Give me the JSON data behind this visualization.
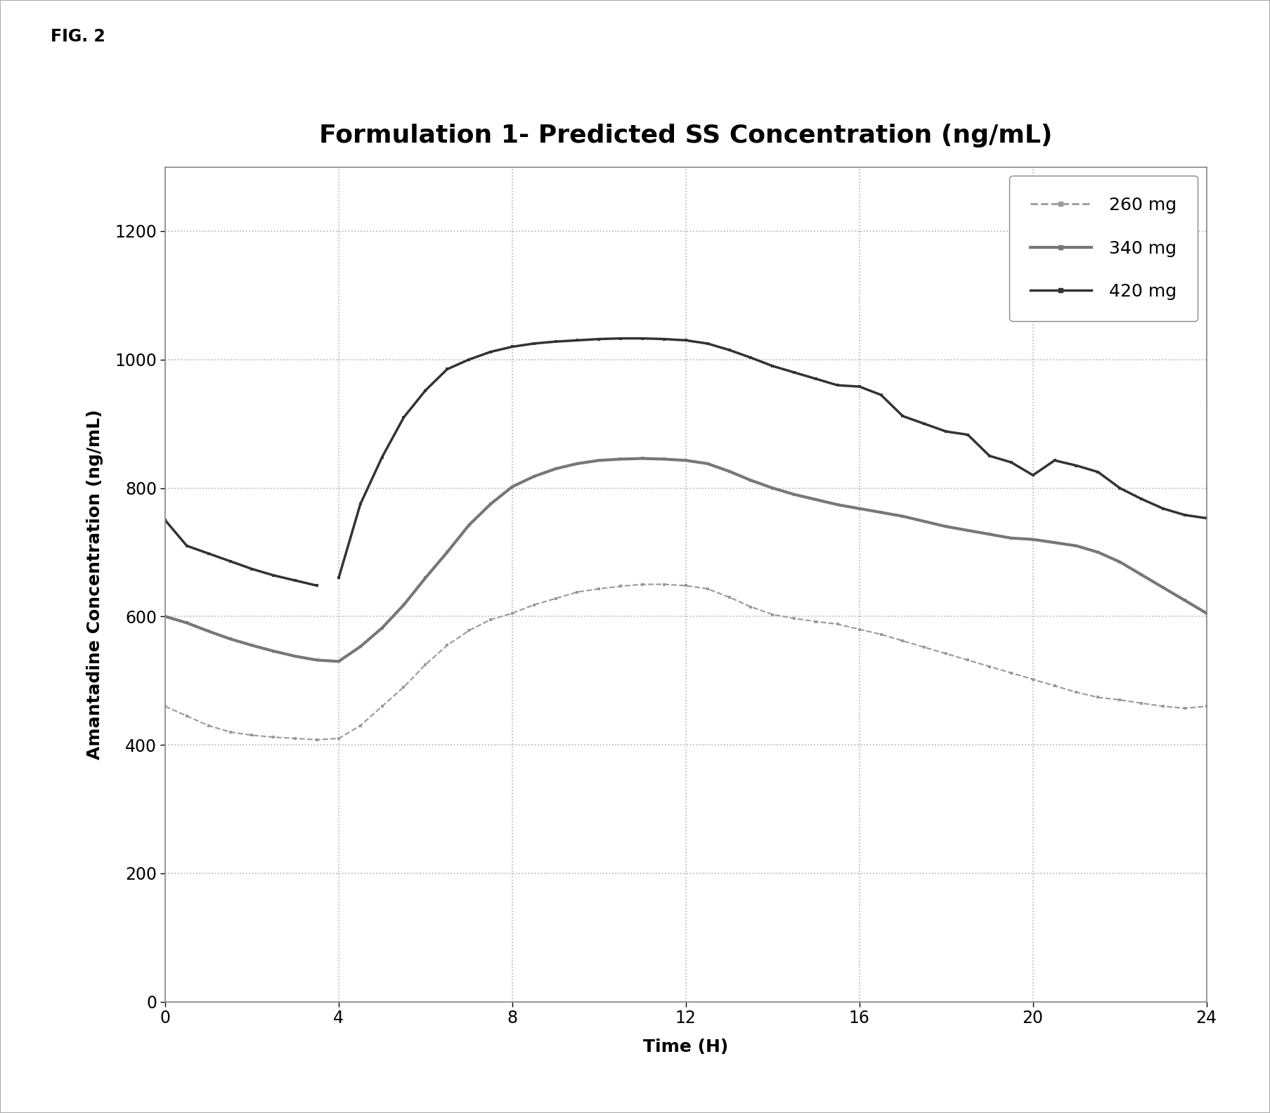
{
  "title": "Formulation 1- Predicted SS Concentration (ng/mL)",
  "xlabel": "Time (H)",
  "ylabel": "Amantadine Concentration (ng/mL)",
  "fig_label": "FIG. 2",
  "xlim": [
    0,
    24
  ],
  "ylim": [
    0,
    1300
  ],
  "xticks": [
    0,
    4,
    8,
    12,
    16,
    20,
    24
  ],
  "yticks": [
    0,
    200,
    400,
    600,
    800,
    1000,
    1200
  ],
  "series": [
    {
      "label": "260 mg",
      "color": "#999999",
      "linewidth": 1.5,
      "marker": "s",
      "markersize": 3.5,
      "x": [
        0,
        0.5,
        1,
        1.5,
        2,
        2.5,
        3,
        3.5,
        4,
        4.5,
        5,
        5.5,
        6,
        6.5,
        7,
        7.5,
        8,
        8.5,
        9,
        9.5,
        10,
        10.5,
        11,
        11.5,
        12,
        12.5,
        13,
        13.5,
        14,
        14.5,
        15,
        15.5,
        16,
        16.5,
        17,
        17.5,
        18,
        18.5,
        19,
        19.5,
        20,
        20.5,
        21,
        21.5,
        22,
        22.5,
        23,
        23.5,
        24
      ],
      "y": [
        460,
        445,
        430,
        420,
        415,
        412,
        410,
        408,
        410,
        430,
        460,
        490,
        525,
        555,
        578,
        595,
        605,
        618,
        628,
        638,
        643,
        647,
        650,
        650,
        648,
        643,
        630,
        615,
        603,
        597,
        592,
        588,
        580,
        572,
        562,
        552,
        542,
        532,
        522,
        512,
        502,
        492,
        482,
        474,
        470,
        465,
        460,
        457,
        460
      ]
    },
    {
      "label": "340 mg",
      "color": "#777777",
      "linewidth": 3.0,
      "marker": "s",
      "markersize": 3.5,
      "x": [
        0,
        0.5,
        1,
        1.5,
        2,
        2.5,
        3,
        3.5,
        4,
        4.5,
        5,
        5.5,
        6,
        6.5,
        7,
        7.5,
        8,
        8.5,
        9,
        9.5,
        10,
        10.5,
        11,
        11.5,
        12,
        12.5,
        13,
        13.5,
        14,
        14.5,
        15,
        15.5,
        16,
        16.5,
        17,
        17.5,
        18,
        18.5,
        19,
        19.5,
        20,
        20.5,
        21,
        21.5,
        22,
        22.5,
        23,
        23.5,
        24
      ],
      "y": [
        600,
        590,
        577,
        565,
        555,
        546,
        538,
        532,
        530,
        553,
        582,
        618,
        660,
        700,
        742,
        775,
        802,
        818,
        830,
        838,
        843,
        845,
        846,
        845,
        843,
        838,
        826,
        812,
        800,
        790,
        782,
        774,
        768,
        762,
        756,
        748,
        740,
        734,
        728,
        722,
        720,
        715,
        710,
        700,
        685,
        665,
        645,
        625,
        605
      ]
    },
    {
      "label": "420 mg",
      "color": "#333333",
      "linewidth": 2.5,
      "marker": "s",
      "markersize": 3.5,
      "segments": [
        {
          "x": [
            0,
            0.5,
            1,
            1.5,
            2,
            2.5,
            3,
            3.5
          ],
          "y": [
            750,
            710,
            698,
            686,
            674,
            664,
            656,
            648
          ]
        },
        {
          "x": [
            4,
            4.5,
            5,
            5.5,
            6,
            6.5,
            7,
            7.5,
            8,
            8.5,
            9,
            9.5,
            10,
            10.5,
            11,
            11.5,
            12,
            12.5,
            13,
            13.5,
            14,
            14.5,
            15,
            15.5,
            16,
            16.5,
            17,
            17.5,
            18,
            18.5,
            19,
            19.5,
            20,
            20.5,
            21,
            21.5,
            22,
            22.5,
            23,
            23.5,
            24
          ],
          "y": [
            660,
            775,
            848,
            910,
            952,
            985,
            1000,
            1012,
            1020,
            1025,
            1028,
            1030,
            1032,
            1033,
            1033,
            1032,
            1030,
            1025,
            1015,
            1003,
            990,
            980,
            970,
            960,
            958,
            945,
            912,
            900,
            888,
            883,
            850,
            840,
            820,
            843,
            835,
            825,
            800,
            783,
            768,
            758,
            753
          ]
        }
      ]
    }
  ],
  "background_color": "#ffffff",
  "grid_color": "#aaaaaa",
  "title_fontsize": 26,
  "label_fontsize": 18,
  "tick_fontsize": 17,
  "legend_fontsize": 18
}
